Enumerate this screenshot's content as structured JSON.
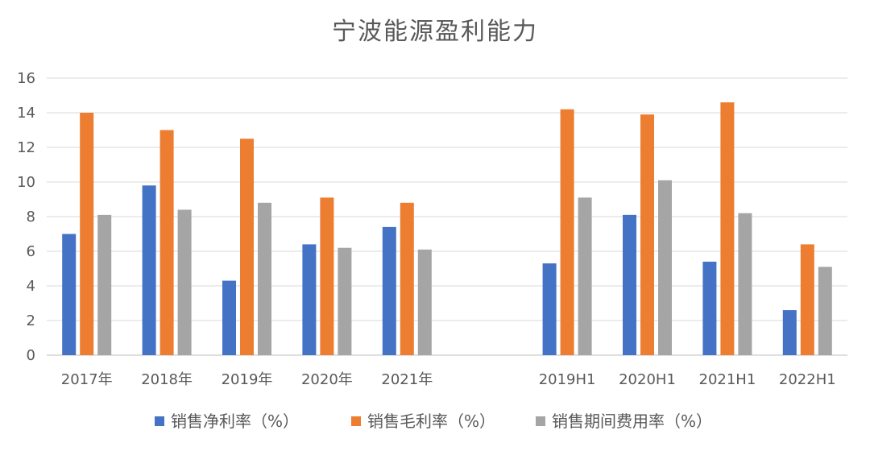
{
  "chart_data": {
    "type": "bar",
    "title": "宁波能源盈利能力",
    "xlabel": "",
    "ylabel": "",
    "ylim": [
      0,
      16
    ],
    "yticks": [
      "0",
      "2",
      "4",
      "6",
      "8",
      "10",
      "12",
      "14",
      "16"
    ],
    "grid": true,
    "legend_position": "bottom",
    "categories": [
      "2017年",
      "2018年",
      "2019年",
      "2020年",
      "2021年",
      "",
      "2019H1",
      "2020H1",
      "2021H1",
      "2022H1"
    ],
    "series": [
      {
        "name": "销售净利率（%）",
        "color": "#4472C4",
        "values": [
          7.0,
          9.8,
          4.3,
          6.4,
          7.4,
          null,
          5.3,
          8.1,
          5.4,
          2.6
        ]
      },
      {
        "name": "销售毛利率（%）",
        "color": "#ED7D31",
        "values": [
          14.0,
          13.0,
          12.5,
          9.1,
          8.8,
          null,
          14.2,
          13.9,
          14.6,
          6.4
        ]
      },
      {
        "name": "销售期间费用率（%）",
        "color": "#A5A5A5",
        "values": [
          8.1,
          8.4,
          8.8,
          6.2,
          6.1,
          null,
          9.1,
          10.1,
          8.2,
          5.1
        ]
      }
    ]
  }
}
